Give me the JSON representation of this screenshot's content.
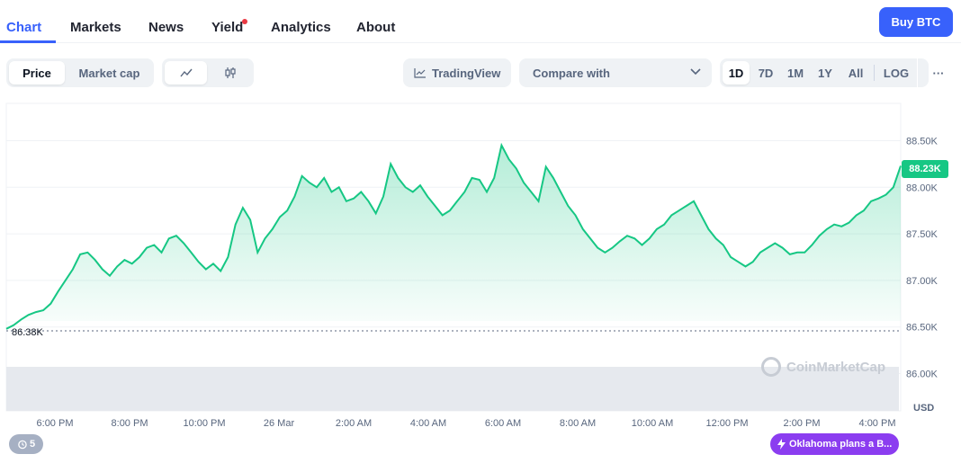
{
  "nav": {
    "tabs": [
      {
        "label": "Chart",
        "active": true
      },
      {
        "label": "Markets"
      },
      {
        "label": "News"
      },
      {
        "label": "Yield",
        "has_dot": true
      },
      {
        "label": "Analytics"
      },
      {
        "label": "About"
      }
    ],
    "buy_label": "Buy BTC"
  },
  "toolbar": {
    "metric_tabs": [
      {
        "label": "Price",
        "active": true
      },
      {
        "label": "Market cap"
      }
    ],
    "chart_style_icons": [
      "line-chart-icon",
      "candlestick-icon"
    ],
    "tradingview_label": "TradingView",
    "compare_label": "Compare with",
    "ranges": [
      "1D",
      "7D",
      "1M",
      "1Y",
      "All"
    ],
    "active_range": "1D",
    "log_label": "LOG",
    "more_label": "···"
  },
  "chart": {
    "y_ticks": [
      "88.50K",
      "88.00K",
      "87.50K",
      "87.00K",
      "86.50K",
      "86.00K"
    ],
    "current_price": "88.23K",
    "low_label": "86.38K",
    "currency": "USD",
    "x_ticks": [
      "6:00 PM",
      "8:00 PM",
      "10:00 PM",
      "26 Mar",
      "2:00 AM",
      "4:00 AM",
      "6:00 AM",
      "8:00 AM",
      "10:00 AM",
      "12:00 PM",
      "2:00 PM",
      "4:00 PM"
    ],
    "watermark": "CoinMarketCap",
    "line_color": "#16c784",
    "accent_color": "#3861fb"
  },
  "chart_data": {
    "type": "area",
    "ylabel": "",
    "ylim": [
      85.6,
      88.9
    ],
    "unit": "K USD",
    "values": [
      86.48,
      86.52,
      86.58,
      86.63,
      86.66,
      86.68,
      86.75,
      86.88,
      87.0,
      87.12,
      87.28,
      87.3,
      87.22,
      87.12,
      87.05,
      87.15,
      87.22,
      87.18,
      87.25,
      87.35,
      87.38,
      87.3,
      87.45,
      87.48,
      87.4,
      87.3,
      87.2,
      87.12,
      87.18,
      87.1,
      87.25,
      87.6,
      87.78,
      87.65,
      87.3,
      87.45,
      87.55,
      87.68,
      87.75,
      87.9,
      88.12,
      88.05,
      88.0,
      88.1,
      87.95,
      88.0,
      87.85,
      87.88,
      87.95,
      87.85,
      87.72,
      87.9,
      88.25,
      88.1,
      88.0,
      87.95,
      88.02,
      87.9,
      87.8,
      87.7,
      87.75,
      87.85,
      87.95,
      88.1,
      88.08,
      87.95,
      88.1,
      88.45,
      88.3,
      88.2,
      88.05,
      87.95,
      87.85,
      88.22,
      88.1,
      87.95,
      87.8,
      87.7,
      87.55,
      87.45,
      87.35,
      87.3,
      87.35,
      87.42,
      87.48,
      87.45,
      87.38,
      87.45,
      87.55,
      87.6,
      87.7,
      87.75,
      87.8,
      87.85,
      87.7,
      87.55,
      87.45,
      87.38,
      87.25,
      87.2,
      87.15,
      87.2,
      87.3,
      87.35,
      87.4,
      87.35,
      87.28,
      87.3,
      87.3,
      87.38,
      87.48,
      87.55,
      87.6,
      87.58,
      87.62,
      87.7,
      87.75,
      87.85,
      87.88,
      87.92,
      88.0,
      88.23
    ]
  },
  "footer": {
    "history_count": "5",
    "news_label": "Oklahoma plans a B..."
  }
}
